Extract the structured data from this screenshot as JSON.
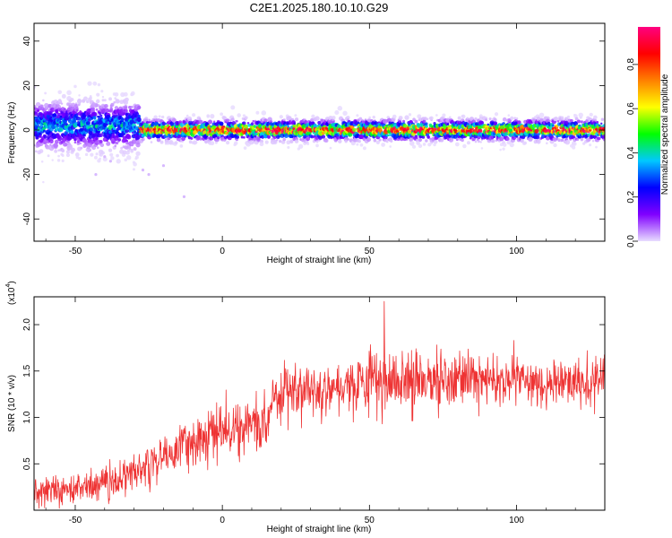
{
  "title": "C2E1.2025.180.10.10.G29",
  "chart_data": [
    {
      "type": "heatmap",
      "xlabel": "Height of straight line (km)",
      "ylabel": "Frequency (Hz)",
      "xlim": [
        -64,
        130
      ],
      "ylim": [
        -50,
        48
      ],
      "x_ticks": [
        -50,
        0,
        50,
        100
      ],
      "x_tick_labels": [
        "-50",
        "0",
        "50",
        "100"
      ],
      "y_ticks": [
        -40,
        -20,
        0,
        20,
        40
      ],
      "y_tick_labels": [
        "-40",
        "-20",
        "0",
        "20",
        "40"
      ],
      "colorbar": {
        "label": "Normalized spectral amplitude",
        "range": [
          0,
          0.97
        ],
        "ticks": [
          0.0,
          0.2,
          0.4,
          0.6,
          0.8
        ],
        "tick_labels": [
          "0.0",
          "0.2",
          "0.4",
          "0.6",
          "0.8"
        ],
        "colormap": [
          "#e8dcff",
          "#8000ff",
          "#0000ff",
          "#00c8ff",
          "#00ff00",
          "#ffff00",
          "#ff8000",
          "#ff0000",
          "#ff0080"
        ]
      },
      "band": {
        "segments": [
          {
            "x_range": [
              -64,
              -28
            ],
            "center_hz": 2,
            "half_width_hz": 7,
            "peak_amplitude": 0.45
          },
          {
            "x_range": [
              -28,
              130
            ],
            "center_hz": 0,
            "half_width_hz": 3,
            "peak_amplitude": 0.97
          }
        ],
        "scatter_points": [
          [
            -40,
            -12
          ],
          [
            -43,
            -20
          ],
          [
            -45,
            -9
          ],
          [
            -27,
            -18
          ],
          [
            -25,
            -20
          ],
          [
            -13,
            -30
          ],
          [
            -20,
            -16
          ],
          [
            -38,
            -14
          ]
        ]
      },
      "grid": false
    },
    {
      "type": "line",
      "xlabel": "Height of straight line (km)",
      "ylabel": "SNR (10 * v/v)",
      "y_multiplier_label": "(x10",
      "y_multiplier_exp": "4",
      "y_multiplier_close": ")",
      "xlim": [
        -64,
        130
      ],
      "ylim": [
        0,
        2.3
      ],
      "x_ticks": [
        -50,
        0,
        50,
        100
      ],
      "x_tick_labels": [
        "-50",
        "0",
        "50",
        "100"
      ],
      "y_ticks": [
        0.5,
        1.0,
        1.5,
        2.0
      ],
      "y_tick_labels": [
        "0.5",
        "1.0",
        "1.5",
        "2.0"
      ],
      "color": "#ee3333",
      "trend_x": [
        -64,
        -50,
        -40,
        -30,
        -20,
        -10,
        0,
        5,
        10,
        15,
        18,
        25,
        40,
        55,
        70,
        90,
        110,
        130
      ],
      "trend_y": [
        0.2,
        0.24,
        0.28,
        0.4,
        0.58,
        0.75,
        0.85,
        0.88,
        0.9,
        0.95,
        1.27,
        1.3,
        1.35,
        1.4,
        1.4,
        1.4,
        1.38,
        1.38
      ],
      "spread_x": [
        -64,
        -30,
        0,
        18,
        40,
        60,
        100,
        130
      ],
      "spread_y": [
        0.14,
        0.2,
        0.26,
        0.26,
        0.26,
        0.3,
        0.24,
        0.22
      ],
      "peak_value": 2.25,
      "peak_x": 55,
      "grid": false
    }
  ]
}
